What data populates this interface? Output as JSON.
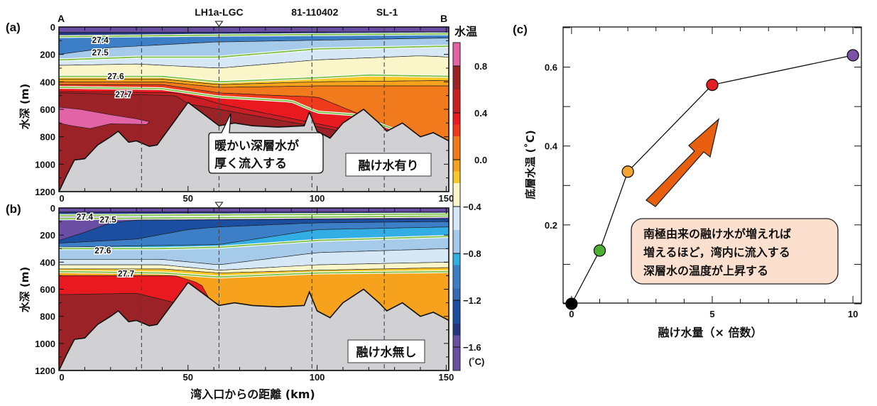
{
  "figure": {
    "panel_a_label": "(a)",
    "panel_b_label": "(b)",
    "panel_c_label": "(c)",
    "endpoint_a": "A",
    "endpoint_b": "B",
    "stations": [
      {
        "name": "LH1a-LGC",
        "km": 62
      },
      {
        "name": "81-110402",
        "km": 98
      },
      {
        "name": "SL-1",
        "km": 126
      }
    ],
    "station_dashed_km": [
      32,
      62,
      98,
      126
    ],
    "triangle_marker_km": 62,
    "colorbar": {
      "title": "水温",
      "unit": "(˚C)",
      "tick_labels": [
        "0.8",
        "0.4",
        "0.0",
        "−0.4",
        "−0.8",
        "−1.2",
        "−1.6"
      ],
      "tick_values": [
        0.8,
        0.4,
        0.0,
        -0.4,
        -0.8,
        -1.2,
        -1.6
      ],
      "range": [
        -1.8,
        1.0
      ],
      "levels": [
        {
          "from": 0.8,
          "to": 1.0,
          "color": "#e263a6"
        },
        {
          "from": 0.6,
          "to": 0.8,
          "color": "#9b2226"
        },
        {
          "from": 0.4,
          "to": 0.6,
          "color": "#c81e24"
        },
        {
          "from": 0.3,
          "to": 0.4,
          "color": "#e8191f"
        },
        {
          "from": 0.2,
          "to": 0.3,
          "color": "#ed3b1c"
        },
        {
          "from": 0.0,
          "to": 0.2,
          "color": "#f07a1c"
        },
        {
          "from": -0.1,
          "to": 0.0,
          "color": "#f6a21d"
        },
        {
          "from": -0.2,
          "to": -0.1,
          "color": "#f8c82a"
        },
        {
          "from": -0.4,
          "to": -0.2,
          "color": "#fbf6c9"
        },
        {
          "from": -0.6,
          "to": -0.4,
          "color": "#d6e8f6"
        },
        {
          "from": -0.8,
          "to": -0.6,
          "color": "#a6cbea"
        },
        {
          "from": -0.9,
          "to": -0.8,
          "color": "#33aee4"
        },
        {
          "from": -1.1,
          "to": -0.9,
          "color": "#3d7fc6"
        },
        {
          "from": -1.2,
          "to": -1.1,
          "color": "#3569b4"
        },
        {
          "from": -1.4,
          "to": -1.2,
          "color": "#1b4da0"
        },
        {
          "from": -1.5,
          "to": -1.4,
          "color": "#233680"
        },
        {
          "from": -1.8,
          "to": -1.5,
          "color": "#6a4ea3"
        }
      ]
    }
  },
  "section_axes": {
    "ylabel": "水深 (m)",
    "xlabel": "湾入口からの距離 (km)",
    "y_ticks": [
      "0",
      "200",
      "400",
      "600",
      "800",
      "1000",
      "1200"
    ],
    "y_tick_values": [
      0,
      200,
      400,
      600,
      800,
      1000,
      1200
    ],
    "x_ticks": [
      "0",
      "50",
      "100",
      "150"
    ],
    "x_tick_values": [
      0,
      50,
      100,
      150
    ],
    "xlim": [
      0,
      151
    ],
    "ylim": [
      0,
      1200
    ]
  },
  "panel_a": {
    "scenario_label": "融け水有り",
    "callout": [
      "暖かい深層水が",
      "厚く流入する"
    ],
    "density_labels": [
      {
        "text": "27.4",
        "km": 16,
        "depth": 90
      },
      {
        "text": "27.5",
        "km": 16,
        "depth": 180
      },
      {
        "text": "27.6",
        "km": 22,
        "depth": 355
      },
      {
        "text": "27.7",
        "km": 25,
        "depth": 485
      }
    ]
  },
  "panel_b": {
    "scenario_label": "融け水無し",
    "density_labels": [
      {
        "text": "27.4",
        "km": 10,
        "depth": 60
      },
      {
        "text": "27.5",
        "km": 19,
        "depth": 80
      },
      {
        "text": "27.6",
        "km": 17,
        "depth": 310
      },
      {
        "text": "27.7",
        "km": 26,
        "depth": 480
      }
    ]
  },
  "chart_data": [
    {
      "type": "heatmap",
      "title": "(a) 融け水有り",
      "xlabel": "湾入口からの距離 (km)",
      "ylabel": "水深 (m)",
      "xlim": [
        0,
        151
      ],
      "ylim": [
        1200,
        0
      ],
      "bathymetry_km": [
        0,
        3,
        6,
        10,
        15,
        20,
        23,
        27,
        30,
        35,
        38,
        45,
        50,
        55,
        62,
        68,
        75,
        85,
        95,
        97,
        100,
        105,
        110,
        118,
        124,
        127,
        133,
        140,
        145,
        151
      ],
      "bathymetry_depth_m": [
        1200,
        1080,
        970,
        960,
        860,
        800,
        760,
        840,
        830,
        870,
        860,
        680,
        550,
        620,
        720,
        700,
        720,
        730,
        720,
        620,
        760,
        810,
        700,
        600,
        700,
        760,
        700,
        800,
        770,
        830
      ],
      "layers_by_temperature": [
        {
          "temp_range": [
            -1.8,
            -1.5
          ],
          "depth_top": 0,
          "depth_bottom": 40
        },
        {
          "temp_range": [
            -0.8,
            -0.4
          ],
          "depth_top": 60,
          "depth_bottom": 230
        },
        {
          "temp_range": [
            -0.4,
            -0.2
          ],
          "depth_top": 230,
          "depth_bottom": 380
        },
        {
          "temp_range": [
            0.0,
            0.4
          ],
          "depth_top": 380,
          "depth_bottom": 480
        },
        {
          "temp_range": [
            0.6,
            0.8
          ],
          "depth_top": 480,
          "depth_bottom": 1200
        },
        {
          "temp_range": [
            0.8,
            1.0
          ],
          "note": "core near 0-35 km, 580-750 m"
        }
      ]
    },
    {
      "type": "heatmap",
      "title": "(b) 融け水無し",
      "xlabel": "湾入口からの距離 (km)",
      "ylabel": "水深 (m)",
      "xlim": [
        0,
        151
      ],
      "ylim": [
        1200,
        0
      ],
      "layers_by_temperature": [
        {
          "temp_range": [
            -1.8,
            -1.5
          ],
          "depth_top": 0,
          "depth_bottom": 30
        },
        {
          "temp_range": [
            -1.5,
            -0.8
          ],
          "depth_top": 80,
          "depth_bottom": 300
        },
        {
          "temp_range": [
            -0.8,
            -0.4
          ],
          "depth_top": 300,
          "depth_bottom": 420
        },
        {
          "temp_range": [
            -0.2,
            0.0
          ],
          "depth_top": 420,
          "depth_bottom": 500
        },
        {
          "temp_range": [
            0.2,
            0.6
          ],
          "depth_top": 500,
          "depth_bottom": 640
        },
        {
          "temp_range": [
            0.6,
            0.8
          ],
          "depth_top": 640,
          "depth_bottom": 1200
        }
      ]
    },
    {
      "type": "line",
      "title": "(c)",
      "xlabel": "融け水量（× 倍数）",
      "ylabel": "底層水温 (˚C)",
      "x": [
        0,
        1,
        2,
        5,
        10
      ],
      "y": [
        0.0,
        0.135,
        0.335,
        0.555,
        0.63
      ],
      "point_colors": [
        "#000000",
        "#4caf34",
        "#f4a431",
        "#e31e24",
        "#7b52a8"
      ],
      "xlim": [
        -0.3,
        10.3
      ],
      "ylim": [
        0.0,
        0.7
      ],
      "x_ticks": [
        0,
        5,
        10
      ],
      "x_tick_labels": [
        "0",
        "5",
        "10"
      ],
      "y_ticks": [
        0.2,
        0.4,
        0.6
      ],
      "y_tick_labels": [
        "0.2",
        "0.4",
        "0.6"
      ],
      "grid": false,
      "annotation": [
        "南極由来の融け水が増えれば",
        "増えるほど，湾内に流入する",
        "深層水の温度が上昇する"
      ],
      "arrow_color": "#e8600f"
    }
  ],
  "panel_c": {
    "xlabel": "融け水量（× 倍数）",
    "ylabel": "底層水温 (˚C)",
    "annotation": [
      "南極由来の融け水が増えれば",
      "増えるほど，湾内に流入する",
      "深層水の温度が上昇する"
    ],
    "annotation_bg": "#fbe0d0"
  }
}
